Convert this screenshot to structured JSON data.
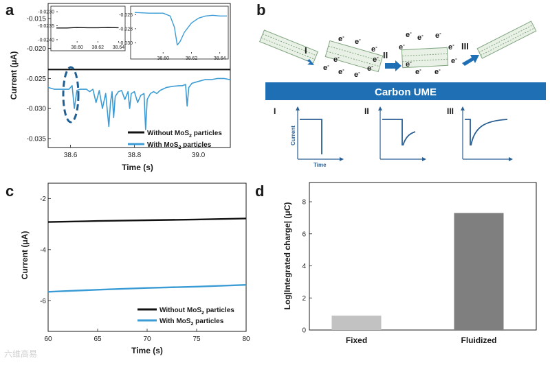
{
  "figure": {
    "panel_labels": [
      "a",
      "b",
      "c",
      "d"
    ],
    "watermark": "六维高易"
  },
  "chart_data": [
    {
      "panel": "a",
      "type": "line",
      "xlabel": "Time (s)",
      "ylabel": "Current (μA)",
      "xlim": [
        38.53,
        39.1
      ],
      "ylim": [
        -0.0365,
        -0.0125
      ],
      "x_ticks": [
        38.6,
        38.8,
        39.0
      ],
      "x_tick_labels": [
        "38.6",
        "38.8",
        "39.0"
      ],
      "y_ticks": [
        -0.015,
        -0.02,
        -0.025,
        -0.03,
        -0.035
      ],
      "y_tick_labels": [
        "-0.015",
        "-0.020",
        "-0.025",
        "-0.030",
        "-0.035"
      ],
      "series": [
        {
          "name": "Without MoS2 particles",
          "legend_text": "Without MoS",
          "legend_sub": "2",
          "legend_tail": " particles",
          "color": "#111111",
          "x": [
            38.53,
            38.6,
            38.7,
            38.8,
            38.9,
            39.0,
            39.1
          ],
          "y": [
            -0.0235,
            -0.0235,
            -0.0235,
            -0.0235,
            -0.0235,
            -0.0235,
            -0.0235
          ]
        },
        {
          "name": "With MoS2 particles",
          "legend_text": "With MoS",
          "legend_sub": "2",
          "legend_tail": " particles",
          "color": "#3a9bd5",
          "x": [
            38.53,
            38.55,
            38.58,
            38.595,
            38.605,
            38.612,
            38.62,
            38.63,
            38.65,
            38.66,
            38.67,
            38.68,
            38.69,
            38.7,
            38.71,
            38.72,
            38.725,
            38.73,
            38.735,
            38.74,
            38.75,
            38.76,
            38.77,
            38.78,
            38.785,
            38.79,
            38.8,
            38.81,
            38.82,
            38.83,
            38.835,
            38.84,
            38.85,
            38.86,
            38.87,
            38.88,
            38.9,
            38.92,
            38.94,
            38.95,
            38.96,
            38.965,
            38.97,
            38.98,
            39.0,
            39.02,
            39.04,
            39.06,
            39.08,
            39.1
          ],
          "y": [
            -0.0265,
            -0.0268,
            -0.0268,
            -0.0268,
            -0.0262,
            -0.03,
            -0.027,
            -0.0268,
            -0.0268,
            -0.0272,
            -0.0268,
            -0.029,
            -0.027,
            -0.03,
            -0.0275,
            -0.033,
            -0.029,
            -0.0272,
            -0.0315,
            -0.028,
            -0.0272,
            -0.027,
            -0.0285,
            -0.0272,
            -0.03,
            -0.0275,
            -0.0272,
            -0.029,
            -0.0278,
            -0.0275,
            -0.0335,
            -0.0285,
            -0.0275,
            -0.0272,
            -0.0275,
            -0.027,
            -0.0265,
            -0.0263,
            -0.0262,
            -0.0262,
            -0.026,
            -0.0296,
            -0.0265,
            -0.0258,
            -0.0255,
            -0.0252,
            -0.0252,
            -0.025,
            -0.025,
            -0.0252
          ]
        }
      ],
      "insets": [
        {
          "xlim": [
            38.58,
            38.645
          ],
          "ylim": [
            -0.0241,
            -0.0229
          ],
          "x_ticks": [
            38.6,
            38.62,
            38.64
          ],
          "x_tick_labels": [
            "38.60",
            "38.62",
            "38.64"
          ],
          "y_ticks": [
            -0.023,
            -0.0235,
            -0.024
          ],
          "y_tick_labels": [
            "-0.0230",
            "-0.0235",
            "-0.0240"
          ],
          "color": "#111111",
          "x": [
            38.58,
            38.59,
            38.6,
            38.61,
            38.62,
            38.63,
            38.64
          ],
          "y": [
            -0.02358,
            -0.02358,
            -0.02356,
            -0.02357,
            -0.02357,
            -0.02356,
            -0.02357
          ]
        },
        {
          "xlim": [
            38.58,
            38.645
          ],
          "ylim": [
            -0.0315,
            -0.0252
          ],
          "x_ticks": [
            38.6,
            38.62,
            38.64
          ],
          "x_tick_labels": [
            "38.60",
            "38.62",
            "38.64"
          ],
          "y_ticks": [
            -0.026,
            -0.028,
            -0.03
          ],
          "y_tick_labels": [
            "-0.026",
            "-0.028",
            "-0.030"
          ],
          "color": "#3a9bd5",
          "x": [
            38.58,
            38.59,
            38.6,
            38.605,
            38.608,
            38.61,
            38.612,
            38.615,
            38.62,
            38.625,
            38.63,
            38.635,
            38.64,
            38.645
          ],
          "y": [
            -0.0257,
            -0.0258,
            -0.0258,
            -0.0262,
            -0.0278,
            -0.0303,
            -0.0298,
            -0.0285,
            -0.0272,
            -0.0265,
            -0.0262,
            -0.0261,
            -0.0262,
            -0.0262
          ]
        }
      ]
    },
    {
      "panel": "b",
      "type": "diagram",
      "electrode_label": "Carbon UME",
      "electron_label": "e",
      "electron_sup": "-",
      "stage_labels": [
        "I",
        "II",
        "III"
      ],
      "mini_axis_labels": {
        "y": "Current",
        "x": "Time"
      }
    },
    {
      "panel": "c",
      "type": "line",
      "xlabel": "Time (s)",
      "ylabel": "Current (μA)",
      "xlim": [
        60,
        80
      ],
      "ylim": [
        -7.2,
        -1.4
      ],
      "x_ticks": [
        60,
        65,
        70,
        75,
        80
      ],
      "x_tick_labels": [
        "60",
        "65",
        "70",
        "75",
        "80"
      ],
      "y_ticks": [
        -2,
        -4,
        -6
      ],
      "y_tick_labels": [
        "-2",
        "-4",
        "-6"
      ],
      "series": [
        {
          "name": "Without MoS2 particles",
          "legend_text": "Without MoS",
          "legend_sub": "2",
          "legend_tail": " particles",
          "color": "#111111",
          "x": [
            60,
            65,
            70,
            75,
            80
          ],
          "y": [
            -2.92,
            -2.88,
            -2.85,
            -2.82,
            -2.78
          ]
        },
        {
          "name": "With MoS2 particles",
          "legend_text": "With MoS",
          "legend_sub": "2",
          "legend_tail": " particles",
          "color": "#3a9bd5",
          "x": [
            60,
            65,
            70,
            75,
            80
          ],
          "y": [
            -5.65,
            -5.57,
            -5.5,
            -5.45,
            -5.38
          ]
        }
      ]
    },
    {
      "panel": "d",
      "type": "bar",
      "categories": [
        "Fixed",
        "Fluidized"
      ],
      "values": [
        0.9,
        7.3
      ],
      "colors": [
        "#c2c2c2",
        "#7f7f7f"
      ],
      "ylabel": "Log|Integrated charge| (μC)",
      "ylim": [
        0,
        9.2
      ],
      "y_ticks": [
        0,
        2,
        4,
        6,
        8
      ],
      "y_tick_labels": [
        "0",
        "2",
        "4",
        "6",
        "8"
      ]
    }
  ]
}
